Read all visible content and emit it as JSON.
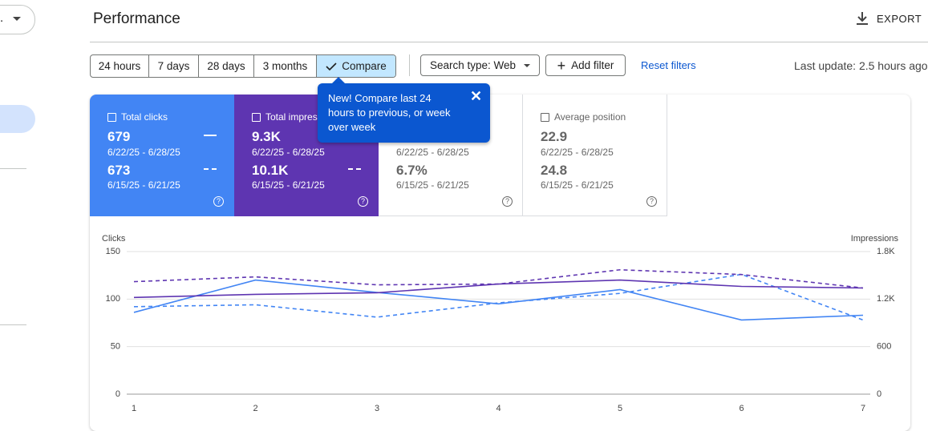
{
  "nav": {
    "dropdown": "."
  },
  "header": {
    "title": "Performance",
    "export": "EXPORT"
  },
  "toolbar": {
    "ranges": [
      "24 hours",
      "7 days",
      "28 days",
      "3 months"
    ],
    "compare": "Compare",
    "search_type": "Search type: Web",
    "add_filter": "Add filter",
    "reset": "Reset filters",
    "last_update": "Last update: 2.5 hours ago"
  },
  "tooltip": {
    "text": "New! Compare last 24 hours to previous, or week over week"
  },
  "cards": [
    {
      "title": "Total clicks",
      "current": {
        "value": "679",
        "range": "6/22/25 - 6/28/25"
      },
      "previous": {
        "value": "673",
        "range": "6/15/25 - 6/21/25"
      }
    },
    {
      "title": "Total impressions",
      "current": {
        "value": "9.3K",
        "range": "6/22/25 - 6/28/25"
      },
      "previous": {
        "value": "10.1K",
        "range": "6/15/25 - 6/21/25"
      }
    },
    {
      "current": {
        "range": "6/22/25 - 6/28/25"
      },
      "previous": {
        "value": "6.7%",
        "range": "6/15/25 - 6/21/25"
      }
    },
    {
      "title": "Average position",
      "current": {
        "value": "22.9",
        "range": "6/22/25 - 6/28/25"
      },
      "previous": {
        "value": "24.8",
        "range": "6/15/25 - 6/21/25"
      }
    }
  ],
  "chart_data": {
    "type": "line",
    "y_label": "Clicks",
    "y2_label": "Impressions",
    "x": [
      1,
      2,
      3,
      4,
      5,
      6,
      7
    ],
    "xlim": [
      1,
      7
    ],
    "xticks": [
      1,
      2,
      3,
      4,
      5,
      6,
      7
    ],
    "ylim": [
      0,
      150
    ],
    "yticks": [
      0,
      50,
      100,
      150
    ],
    "y2lim": [
      0,
      1800
    ],
    "y2ticks": [
      0,
      600,
      {
        "value": 1200,
        "label": "1.2K"
      },
      {
        "value": 1800,
        "label": "1.8K"
      }
    ],
    "grid": true,
    "series": [
      {
        "color": "#4285f4",
        "style": "solid",
        "values": [
          86,
          120,
          107,
          95,
          110,
          78,
          83
        ]
      },
      {
        "color": "#4285f4",
        "style": "dashed",
        "values": [
          92,
          94,
          81,
          96,
          106,
          126,
          78
        ]
      },
      {
        "color": "#5e35b1",
        "style": "solid",
        "axis": "y2",
        "values": [
          1220,
          1260,
          1280,
          1390,
          1440,
          1360,
          1340
        ]
      },
      {
        "color": "#5e35b1",
        "style": "dashed",
        "axis": "y2",
        "values": [
          1420,
          1480,
          1380,
          1390,
          1570,
          1510,
          1340
        ]
      }
    ]
  }
}
